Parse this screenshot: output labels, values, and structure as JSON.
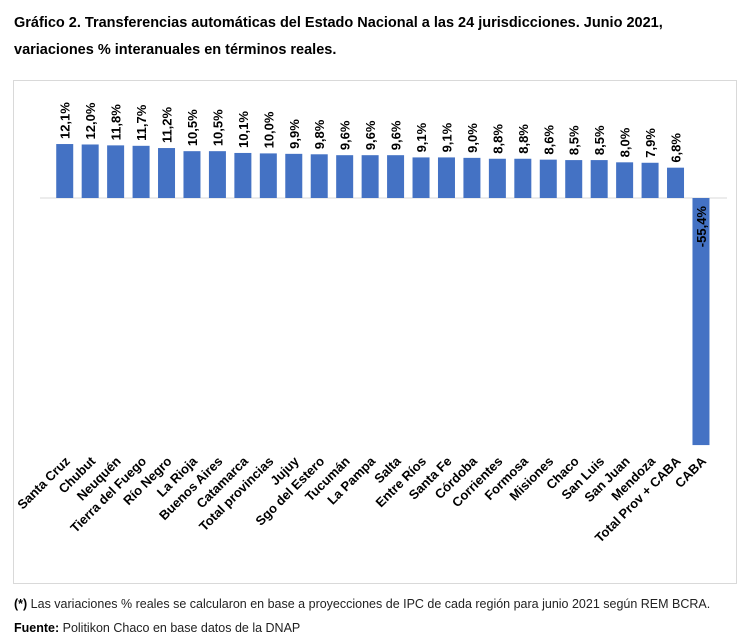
{
  "title": "Gráfico 2. Transferencias automáticas del Estado Nacional a las 24 jurisdicciones. Junio 2021, variaciones % interanuales en términos reales.",
  "footnote": {
    "marker": "(*)",
    "text1": " Las variaciones % reales se calcularon en base a proyecciones de IPC de cada región para junio 2021 según REM BCRA. ",
    "source_label": "Fuente:",
    "text2": " Politikon Chaco en base datos de la DNAP"
  },
  "chart_data": {
    "type": "bar",
    "title": "",
    "xlabel": "",
    "ylabel": "",
    "grid": false,
    "legend": "none",
    "bar_color": "#4472c4",
    "categories": [
      "Santa Cruz",
      "Chubut",
      "Neuquén",
      "Tierra del Fuego",
      "Río Negro",
      "La Rioja",
      "Buenos Aires",
      "Catamarca",
      "Total provincias",
      "Jujuy",
      "Sgo del Estero",
      "Tucumán",
      "La Pampa",
      "Salta",
      "Entre Ríos",
      "Santa Fe",
      "Córdoba",
      "Corrientes",
      "Formosa",
      "Misiones",
      "Chaco",
      "San Luis",
      "San Juan",
      "Mendoza",
      "Total Prov + CABA",
      "CABA"
    ],
    "values": [
      12.1,
      12.0,
      11.8,
      11.7,
      11.2,
      10.5,
      10.5,
      10.1,
      10.0,
      9.9,
      9.8,
      9.6,
      9.6,
      9.6,
      9.1,
      9.1,
      9.0,
      8.8,
      8.8,
      8.6,
      8.5,
      8.5,
      8.0,
      7.9,
      6.8,
      -55.4
    ],
    "labels": [
      "12,1%",
      "12,0%",
      "11,8%",
      "11,7%",
      "11,2%",
      "10,5%",
      "10,5%",
      "10,1%",
      "10,0%",
      "9,9%",
      "9,8%",
      "9,6%",
      "9,6%",
      "9,6%",
      "9,1%",
      "9,1%",
      "9,0%",
      "8,8%",
      "8,8%",
      "8,6%",
      "8,5%",
      "8,5%",
      "8,0%",
      "7,9%",
      "6,8%",
      "-55,4%"
    ]
  }
}
